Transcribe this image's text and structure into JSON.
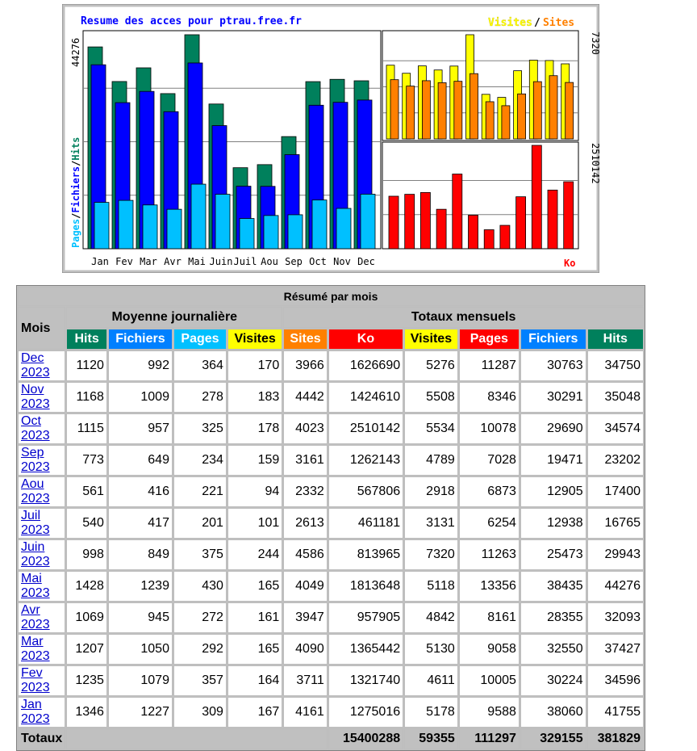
{
  "chart": {
    "title": "Resume des acces pour ptrau.free.fr",
    "legend_visites": "Visites",
    "legend_sep": "/",
    "legend_sites": "Sites",
    "left_axis_max": "44276",
    "left_axis_pages": "Pages",
    "left_axis_fichiers": "Fichiers",
    "left_axis_hits": "Hits",
    "left_axis_sep": "/",
    "right_top_max": "7320",
    "right_bottom_max": "2510142",
    "ko_label": "Ko",
    "colors": {
      "frame": "#c0c0c0",
      "hits": "#00805c",
      "fichiers": "#0000ff",
      "pages": "#00c0ff",
      "visites": "#ffff00",
      "sites": "#ff8000",
      "ko": "#ff0000",
      "title": "#0000ff"
    }
  },
  "chart_data": {
    "type": "bar",
    "categories": [
      "Jan",
      "Fev",
      "Mar",
      "Avr",
      "Mai",
      "Juin",
      "Juil",
      "Aou",
      "Sep",
      "Oct",
      "Nov",
      "Dec"
    ],
    "series": [
      {
        "name": "Hits",
        "values": [
          41755,
          34596,
          37427,
          32093,
          44276,
          29943,
          16765,
          17400,
          23202,
          34574,
          35048,
          34750
        ]
      },
      {
        "name": "Fichiers",
        "values": [
          38060,
          30224,
          32550,
          28355,
          38435,
          25473,
          12938,
          12905,
          19471,
          29690,
          30291,
          30763
        ]
      },
      {
        "name": "Pages",
        "values": [
          9588,
          10005,
          9058,
          8161,
          13356,
          11263,
          6254,
          6873,
          7028,
          10078,
          8346,
          11287
        ]
      },
      {
        "name": "Visites",
        "values": [
          5178,
          4611,
          5130,
          4842,
          5118,
          7320,
          3131,
          2918,
          4789,
          5534,
          5508,
          5276
        ]
      },
      {
        "name": "Sites",
        "values": [
          4161,
          3711,
          4090,
          3947,
          4049,
          4586,
          2613,
          2332,
          3161,
          4023,
          4442,
          3966
        ]
      },
      {
        "name": "Ko",
        "values": [
          1275016,
          1321740,
          1365442,
          957905,
          1813648,
          813965,
          461181,
          567806,
          1262143,
          2510142,
          1424610,
          1626690
        ]
      }
    ],
    "ylim_main": [
      0,
      44276
    ],
    "ylim_visits": [
      0,
      7320
    ],
    "ylim_ko": [
      0,
      2510142
    ]
  },
  "table": {
    "title": "Résumé par mois",
    "mois_label": "Mois",
    "group_daily": "Moyenne journalière",
    "group_monthly": "Totaux mensuels",
    "columns": [
      {
        "label": "Hits",
        "bg": "#00805c",
        "fg": "#ffffff"
      },
      {
        "label": "Fichiers",
        "bg": "#0080ff",
        "fg": "#ffffff"
      },
      {
        "label": "Pages",
        "bg": "#00c0ff",
        "fg": "#ffffff"
      },
      {
        "label": "Visites",
        "bg": "#ffff00",
        "fg": "#000000"
      },
      {
        "label": "Sites",
        "bg": "#ff8000",
        "fg": "#ffffff"
      },
      {
        "label": "Ko",
        "bg": "#ff0000",
        "fg": "#ffffff"
      },
      {
        "label": "Visites",
        "bg": "#ffff00",
        "fg": "#000000"
      },
      {
        "label": "Pages",
        "bg": "#ff0000",
        "fg": "#ffffff"
      },
      {
        "label": "Fichiers",
        "bg": "#0080ff",
        "fg": "#ffffff"
      },
      {
        "label": "Hits",
        "bg": "#00805c",
        "fg": "#ffffff"
      }
    ],
    "rows": [
      {
        "month": "Dec 2023",
        "cells": [
          "1120",
          "992",
          "364",
          "170",
          "3966",
          "1626690",
          "5276",
          "11287",
          "30763",
          "34750"
        ]
      },
      {
        "month": "Nov 2023",
        "cells": [
          "1168",
          "1009",
          "278",
          "183",
          "4442",
          "1424610",
          "5508",
          "8346",
          "30291",
          "35048"
        ]
      },
      {
        "month": "Oct 2023",
        "cells": [
          "1115",
          "957",
          "325",
          "178",
          "4023",
          "2510142",
          "5534",
          "10078",
          "29690",
          "34574"
        ]
      },
      {
        "month": "Sep 2023",
        "cells": [
          "773",
          "649",
          "234",
          "159",
          "3161",
          "1262143",
          "4789",
          "7028",
          "19471",
          "23202"
        ]
      },
      {
        "month": "Aou 2023",
        "cells": [
          "561",
          "416",
          "221",
          "94",
          "2332",
          "567806",
          "2918",
          "6873",
          "12905",
          "17400"
        ]
      },
      {
        "month": "Juil 2023",
        "cells": [
          "540",
          "417",
          "201",
          "101",
          "2613",
          "461181",
          "3131",
          "6254",
          "12938",
          "16765"
        ]
      },
      {
        "month": "Juin 2023",
        "cells": [
          "998",
          "849",
          "375",
          "244",
          "4586",
          "813965",
          "7320",
          "11263",
          "25473",
          "29943"
        ]
      },
      {
        "month": "Mai 2023",
        "cells": [
          "1428",
          "1239",
          "430",
          "165",
          "4049",
          "1813648",
          "5118",
          "13356",
          "38435",
          "44276"
        ]
      },
      {
        "month": "Avr 2023",
        "cells": [
          "1069",
          "945",
          "272",
          "161",
          "3947",
          "957905",
          "4842",
          "8161",
          "28355",
          "32093"
        ]
      },
      {
        "month": "Mar 2023",
        "cells": [
          "1207",
          "1050",
          "292",
          "165",
          "4090",
          "1365442",
          "5130",
          "9058",
          "32550",
          "37427"
        ]
      },
      {
        "month": "Fev 2023",
        "cells": [
          "1235",
          "1079",
          "357",
          "164",
          "3711",
          "1321740",
          "4611",
          "10005",
          "30224",
          "34596"
        ]
      },
      {
        "month": "Jan 2023",
        "cells": [
          "1346",
          "1227",
          "309",
          "167",
          "4161",
          "1275016",
          "5178",
          "9588",
          "38060",
          "41755"
        ]
      }
    ],
    "totals": {
      "label": "Totaux",
      "ko": "15400288",
      "visites": "59355",
      "pages": "111297",
      "fichiers": "329155",
      "hits": "381829"
    }
  }
}
